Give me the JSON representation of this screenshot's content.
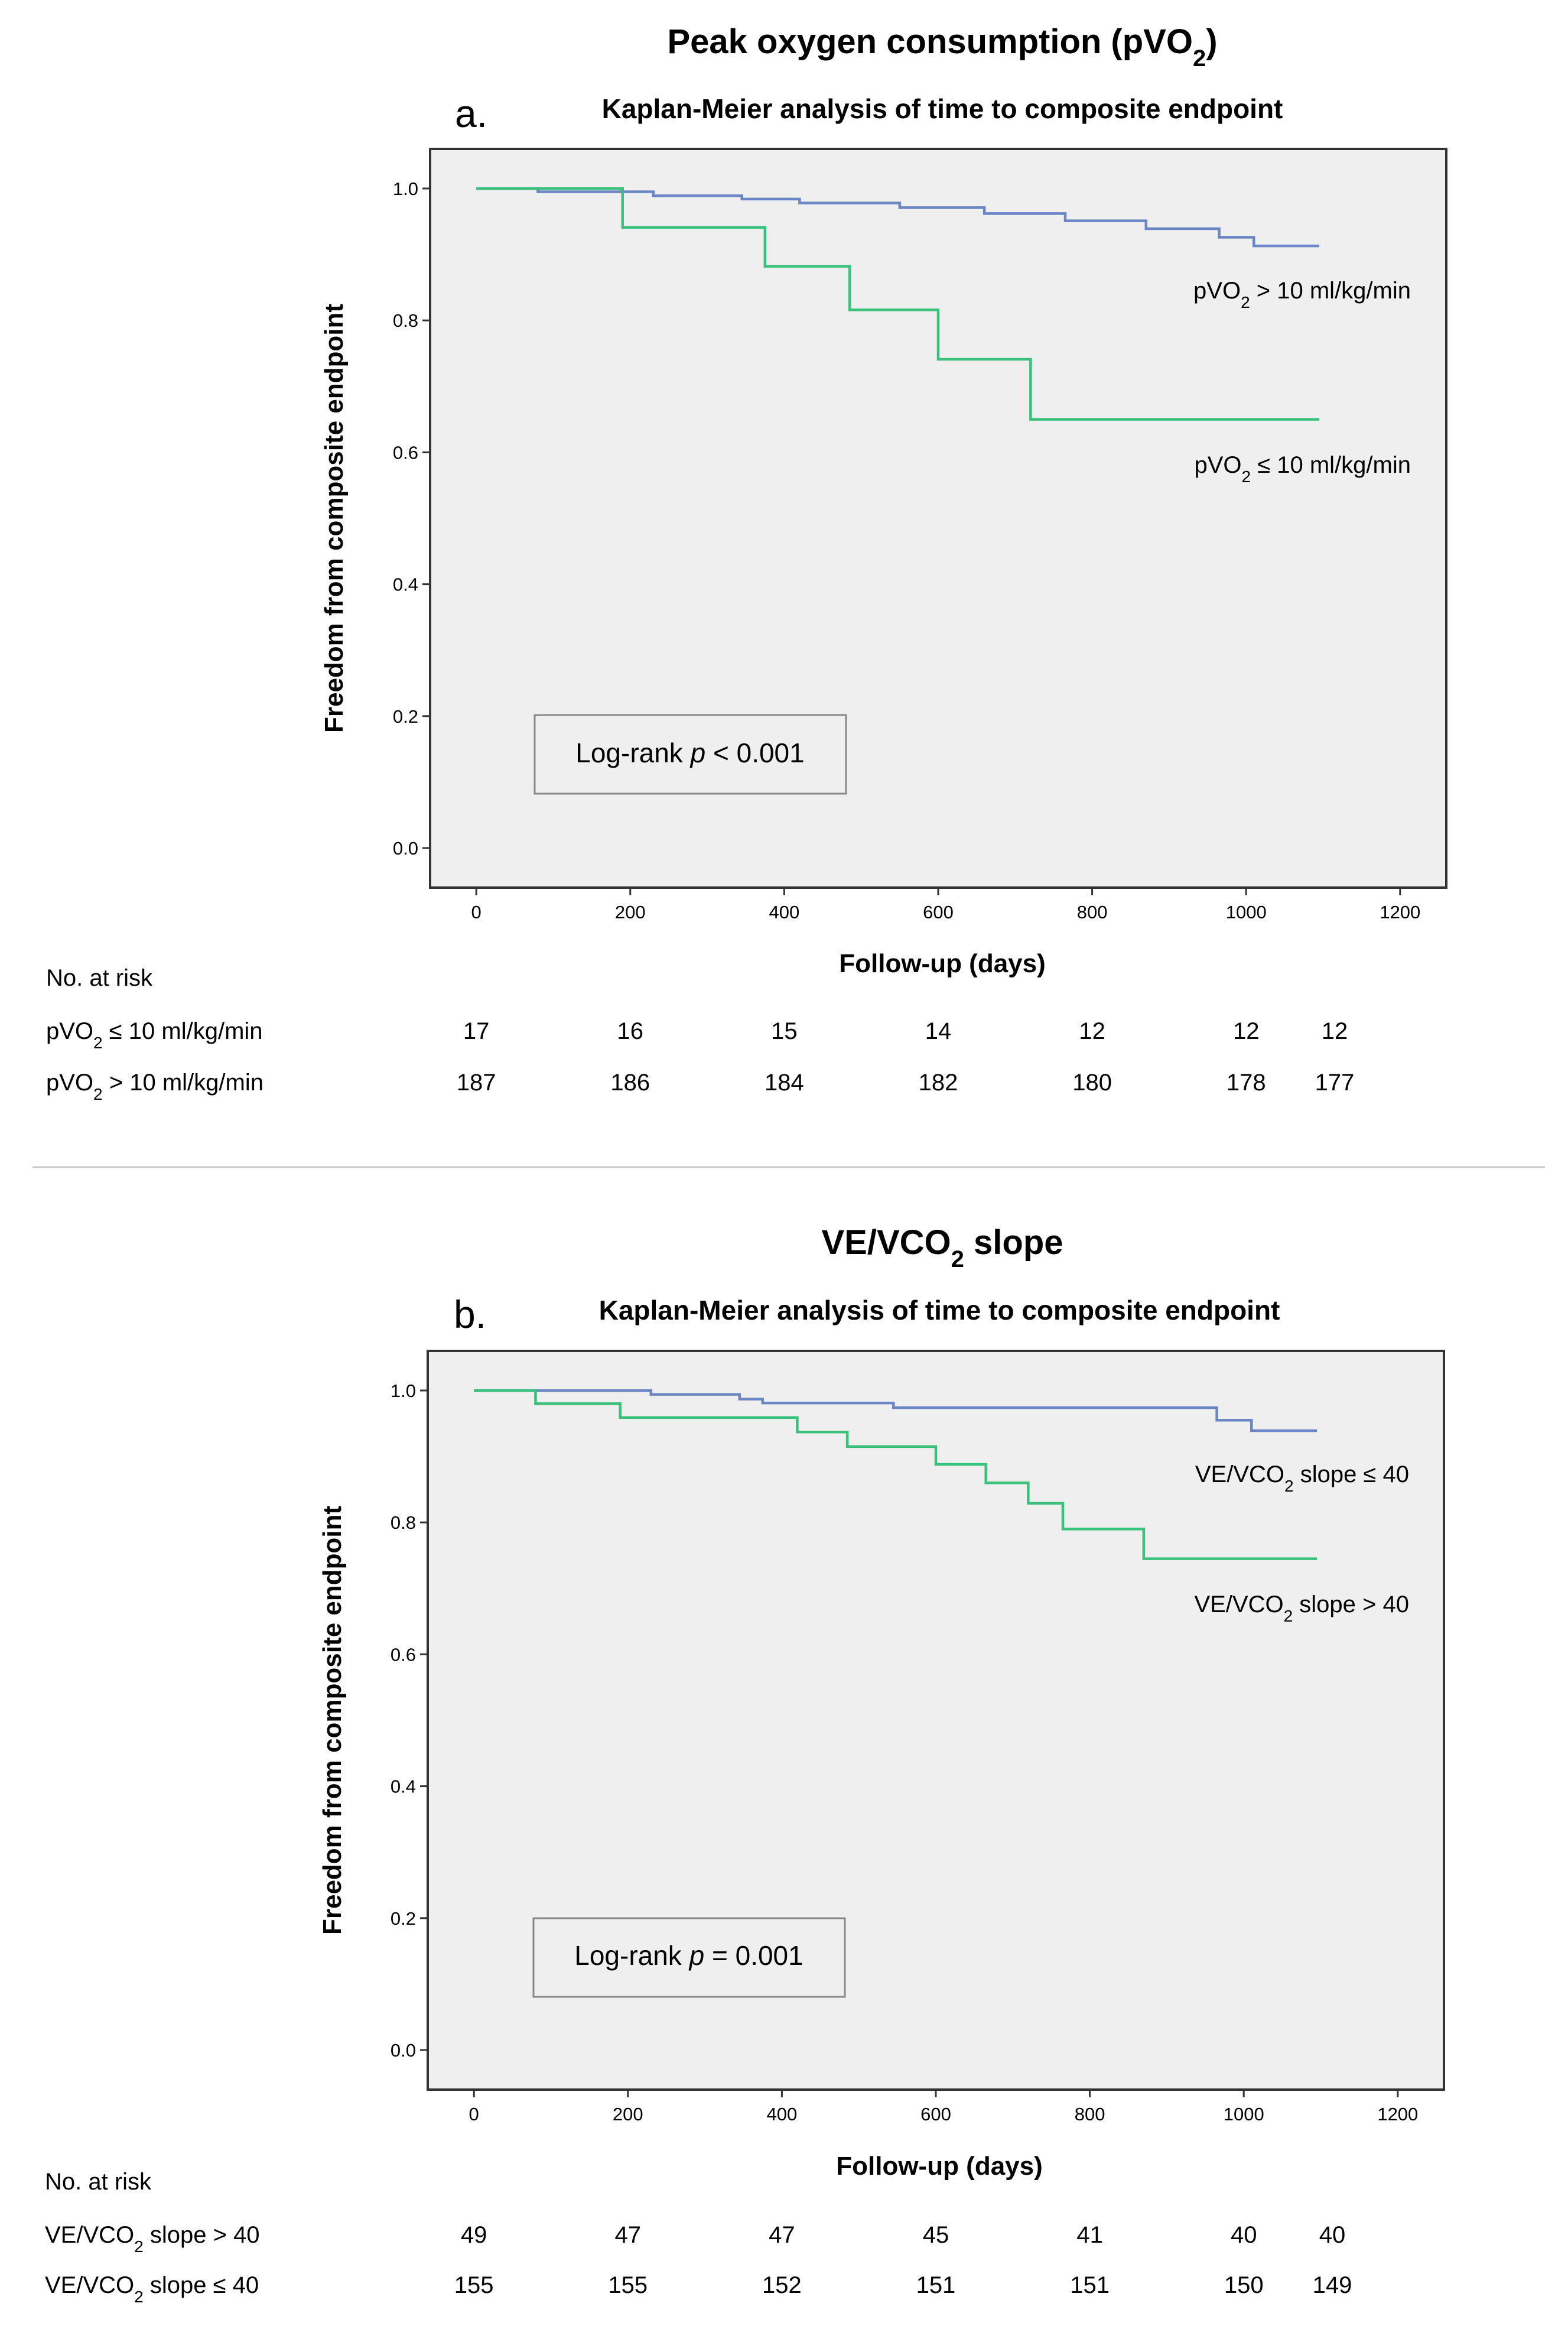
{
  "chart_data": [
    {
      "type": "line",
      "subtype": "kaplan-meier step",
      "panel": "a.",
      "heading": {
        "text": "Peak oxygen consumption (pVO",
        "sub": "2",
        "tail": ")"
      },
      "title": "Kaplan-Meier analysis of time to composite endpoint",
      "xlabel": "Follow-up (days)",
      "ylabel": "Freedom from composite endpoint",
      "xlim": [
        -60,
        1260
      ],
      "ylim": [
        -0.06,
        1.06
      ],
      "xticks": [
        "0",
        "200",
        "400",
        "600",
        "800",
        "1000",
        "1200"
      ],
      "yticks": [
        "0.0",
        "0.2",
        "0.4",
        "0.6",
        "0.8",
        "1.0"
      ],
      "colors": {
        "high_risk": "#39c17c",
        "low_risk": "#6b86c4",
        "plot_bg": "#efefef"
      },
      "series": [
        {
          "name": "pVO2 > 10 ml/kg/min",
          "label": {
            "pre": "pVO",
            "sub": "2",
            "post": " > 10 ml/kg/min"
          },
          "color": "#6b86c4",
          "x": [
            0,
            80,
            230,
            345,
            420,
            550,
            660,
            765,
            870,
            965,
            1010,
            1095
          ],
          "y": [
            1.0,
            0.995,
            0.989,
            0.984,
            0.978,
            0.971,
            0.962,
            0.951,
            0.939,
            0.926,
            0.913,
            0.913
          ]
        },
        {
          "name": "pVO2 ≤ 10 ml/kg/min",
          "label": {
            "pre": "pVO",
            "sub": "2",
            "post": " ≤ 10 ml/kg/min"
          },
          "color": "#39c17c",
          "x": [
            0,
            190,
            375,
            485,
            600,
            720,
            1095
          ],
          "y": [
            1.0,
            0.941,
            0.882,
            0.816,
            0.741,
            0.65,
            0.65
          ]
        }
      ],
      "logrank": {
        "pre": "Log-rank ",
        "p": "p",
        "post": " < 0.001"
      },
      "risk_table": {
        "header": "No. at risk",
        "times": [
          0,
          200,
          400,
          600,
          800,
          1000,
          1115
        ],
        "rows": [
          {
            "label": {
              "pre": "pVO",
              "sub": "2",
              "post": " ≤ 10 ml/kg/min"
            },
            "values": [
              "17",
              "16",
              "15",
              "14",
              "12",
              "12",
              "12"
            ]
          },
          {
            "label": {
              "pre": "pVO",
              "sub": "2",
              "post": " > 10 ml/kg/min"
            },
            "values": [
              "187",
              "186",
              "184",
              "182",
              "180",
              "178",
              "177"
            ]
          }
        ]
      }
    },
    {
      "type": "line",
      "subtype": "kaplan-meier step",
      "panel": "b.",
      "heading": {
        "text": "VE/VCO",
        "sub": "2",
        "tail": " slope"
      },
      "title": "Kaplan-Meier analysis of time to composite endpoint",
      "xlabel": "Follow-up (days)",
      "ylabel": "Freedom from composite endpoint",
      "xlim": [
        -60,
        1260
      ],
      "ylim": [
        -0.06,
        1.06
      ],
      "xticks": [
        "0",
        "200",
        "400",
        "600",
        "800",
        "1000",
        "1200"
      ],
      "yticks": [
        "0.0",
        "0.2",
        "0.4",
        "0.6",
        "0.8",
        "1.0"
      ],
      "colors": {
        "high_risk": "#39c17c",
        "low_risk": "#6b86c4",
        "plot_bg": "#efefef"
      },
      "series": [
        {
          "name": "VE/VCO2 slope ≤ 40",
          "label": {
            "pre": "VE/VCO",
            "sub": "2",
            "post": " slope ≤ 40"
          },
          "color": "#6b86c4",
          "x": [
            0,
            230,
            345,
            375,
            545,
            965,
            1010,
            1095
          ],
          "y": [
            1.0,
            0.994,
            0.987,
            0.981,
            0.974,
            0.955,
            0.939,
            0.939
          ]
        },
        {
          "name": "VE/VCO2 slope > 40",
          "label": {
            "pre": "VE/VCO",
            "sub": "2",
            "post": " slope > 40"
          },
          "color": "#39c17c",
          "x": [
            0,
            80,
            190,
            420,
            485,
            600,
            665,
            720,
            765,
            870,
            1095
          ],
          "y": [
            1.0,
            0.98,
            0.959,
            0.937,
            0.915,
            0.888,
            0.86,
            0.829,
            0.79,
            0.745,
            0.745
          ]
        }
      ],
      "logrank": {
        "pre": "Log-rank ",
        "p": "p",
        "post": " = 0.001"
      },
      "risk_table": {
        "header": "No. at risk",
        "times": [
          0,
          200,
          400,
          600,
          800,
          1000,
          1115
        ],
        "rows": [
          {
            "label": {
              "pre": "VE/VCO",
              "sub": "2",
              "post": " slope > 40"
            },
            "values": [
              "49",
              "47",
              "47",
              "45",
              "41",
              "40",
              "40"
            ]
          },
          {
            "label": {
              "pre": "VE/VCO",
              "sub": "2",
              "post": " slope ≤ 40"
            },
            "values": [
              "155",
              "155",
              "152",
              "151",
              "151",
              "150",
              "149"
            ]
          }
        ]
      }
    }
  ]
}
